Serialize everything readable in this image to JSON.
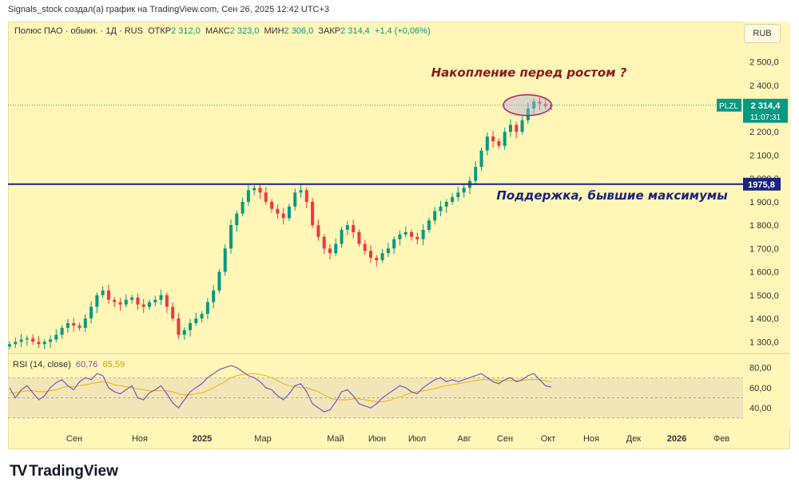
{
  "attribution": "Signals_stock создал(а) график на TradingView.com, Сен 26, 2025 12:42 UTC+3",
  "header": {
    "symbol": "Полюс ПАО · обыкн. · 1Д · RUS",
    "open_label": "ОТКР",
    "open": "2 312,0",
    "high_label": "МАКС",
    "high": "2 323,0",
    "low_label": "МИН",
    "low": "2 306,0",
    "close_label": "ЗАКР",
    "close": "2 314,4",
    "change": "+1,4 (+0,06%)"
  },
  "currency": "RUB",
  "rsi_legend": {
    "label": "RSI (14, close)",
    "value1": "60,76",
    "value2": "65,59"
  },
  "brand": {
    "logo": "TV",
    "name": "TradingView"
  },
  "colors": {
    "background": "#fff6b8",
    "up": "#089981",
    "down": "#f23645",
    "rsi": "#7e57c2",
    "rsi_ma": "#e6b800",
    "support": "#1a237e",
    "annotation": "#8b1a1a"
  },
  "chart_data": [
    {
      "type": "candlestick",
      "title": "",
      "x": [
        "Сен",
        "Ноя",
        "2025",
        "Мар",
        "Май",
        "Июн",
        "Июл",
        "Авг",
        "Сен",
        "Окт",
        "Ноя",
        "Дек",
        "2026",
        "Фев"
      ],
      "ylim": [
        1260,
        2560
      ],
      "y_ticks": [
        "2 500,0",
        "2 400,0",
        "2 300,0",
        "2 200,0",
        "2 100,0",
        "2 000,0",
        "1 900,0",
        "1 800,0",
        "1 700,0",
        "1 600,0",
        "1 500,0",
        "1 400,0",
        "1 300,0"
      ],
      "y_tick_values": [
        2500,
        2400,
        2300,
        2200,
        2100,
        2000,
        1900,
        1800,
        1700,
        1600,
        1500,
        1400,
        1300
      ],
      "closes": [
        1290,
        1300,
        1310,
        1315,
        1300,
        1290,
        1300,
        1310,
        1330,
        1360,
        1380,
        1370,
        1360,
        1400,
        1450,
        1500,
        1520,
        1480,
        1470,
        1460,
        1480,
        1490,
        1460,
        1450,
        1470,
        1480,
        1500,
        1450,
        1400,
        1330,
        1350,
        1380,
        1400,
        1420,
        1470,
        1520,
        1600,
        1700,
        1800,
        1850,
        1900,
        1950,
        1960,
        1940,
        1900,
        1870,
        1850,
        1830,
        1880,
        1940,
        1950,
        1900,
        1800,
        1750,
        1700,
        1680,
        1720,
        1780,
        1800,
        1770,
        1720,
        1690,
        1660,
        1650,
        1680,
        1700,
        1740,
        1760,
        1770,
        1750,
        1740,
        1780,
        1820,
        1860,
        1880,
        1900,
        1920,
        1940,
        1960,
        1990,
        2050,
        2120,
        2180,
        2160,
        2140,
        2200,
        2230,
        2200,
        2250,
        2300,
        2330,
        2320,
        2310,
        2314.4
      ],
      "last_price_label": "2 314,4",
      "last_price": 2314.4,
      "countdown": "11:07:31",
      "ticker_label": "PLZL",
      "support": {
        "value": 1975.8,
        "label": "1975,8"
      },
      "annotations": [
        "Накопление перед ростом ?",
        "Поддержка, бывшие максимумы"
      ]
    },
    {
      "type": "line",
      "title": "",
      "ylim": [
        25,
        90
      ],
      "y_ticks": [
        "80,00",
        "60,00",
        "40,00"
      ],
      "y_tick_values": [
        80,
        60,
        40
      ],
      "bands": [
        70,
        50,
        30
      ],
      "series": [
        {
          "values": [
            60,
            50,
            58,
            62,
            55,
            48,
            52,
            60,
            65,
            68,
            62,
            58,
            66,
            70,
            68,
            74,
            72,
            60,
            56,
            54,
            58,
            62,
            50,
            48,
            55,
            58,
            62,
            54,
            45,
            40,
            48,
            56,
            60,
            64,
            70,
            74,
            78,
            80,
            82,
            80,
            76,
            72,
            70,
            66,
            60,
            58,
            52,
            48,
            54,
            62,
            64,
            56,
            44,
            40,
            36,
            38,
            46,
            56,
            58,
            52,
            44,
            42,
            40,
            44,
            50,
            54,
            58,
            62,
            60,
            56,
            54,
            60,
            64,
            68,
            70,
            66,
            68,
            66,
            68,
            70,
            72,
            74,
            70,
            66,
            64,
            68,
            70,
            66,
            68,
            72,
            74,
            68,
            62,
            60.76
          ]
        },
        {
          "values": [
            55,
            55,
            56,
            57,
            57,
            56,
            56,
            57,
            58,
            60,
            61,
            61,
            62,
            63,
            64,
            65,
            66,
            65,
            63,
            62,
            61,
            60,
            59,
            58,
            57,
            57,
            57,
            57,
            56,
            54,
            53,
            53,
            54,
            55,
            57,
            60,
            63,
            66,
            70,
            72,
            73,
            74,
            74,
            73,
            72,
            70,
            67,
            64,
            62,
            61,
            60,
            60,
            58,
            56,
            53,
            50,
            48,
            48,
            48,
            49,
            49,
            48,
            47,
            46,
            46,
            47,
            49,
            51,
            53,
            55,
            56,
            57,
            58,
            59,
            61,
            62,
            63,
            64,
            65,
            66,
            67,
            68,
            68,
            68,
            67,
            67,
            67,
            67,
            67,
            68,
            68,
            68,
            67,
            65.59
          ]
        }
      ]
    }
  ]
}
